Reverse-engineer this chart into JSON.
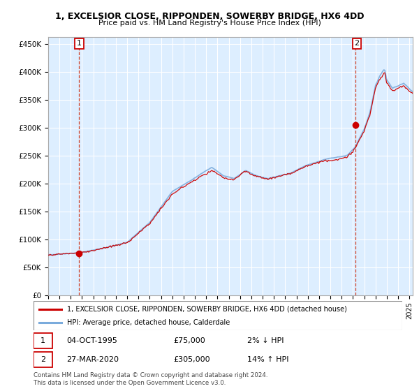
{
  "title_line1": "1, EXCELSIOR CLOSE, RIPPONDEN, SOWERBY BRIDGE, HX6 4DD",
  "title_line2": "Price paid vs. HM Land Registry's House Price Index (HPI)",
  "yticks": [
    0,
    50000,
    100000,
    150000,
    200000,
    250000,
    300000,
    350000,
    400000,
    450000
  ],
  "ytick_labels": [
    "£0",
    "£50K",
    "£100K",
    "£150K",
    "£200K",
    "£250K",
    "£300K",
    "£350K",
    "£400K",
    "£450K"
  ],
  "ylim": [
    0,
    462000
  ],
  "xlim_left": 1993,
  "xlim_right": 2025.3,
  "hpi_color": "#7aabdc",
  "price_color": "#cc0000",
  "marker_color": "#cc0000",
  "vline_color": "#cc2200",
  "background_color": "#ffffff",
  "plot_bg_color": "#ddeeff",
  "grid_color": "#ffffff",
  "legend_label_price": "1, EXCELSIOR CLOSE, RIPPONDEN, SOWERBY BRIDGE, HX6 4DD (detached house)",
  "legend_label_hpi": "HPI: Average price, detached house, Calderdale",
  "sale1_date": "04-OCT-1995",
  "sale1_price": "£75,000",
  "sale1_hpi": "2% ↓ HPI",
  "sale2_date": "27-MAR-2020",
  "sale2_price": "£305,000",
  "sale2_hpi": "14% ↑ HPI",
  "footer": "Contains HM Land Registry data © Crown copyright and database right 2024.\nThis data is licensed under the Open Government Licence v3.0.",
  "sale1_year": 1995.75,
  "sale1_value": 75000,
  "sale2_year": 2020.2,
  "sale2_value": 305000
}
